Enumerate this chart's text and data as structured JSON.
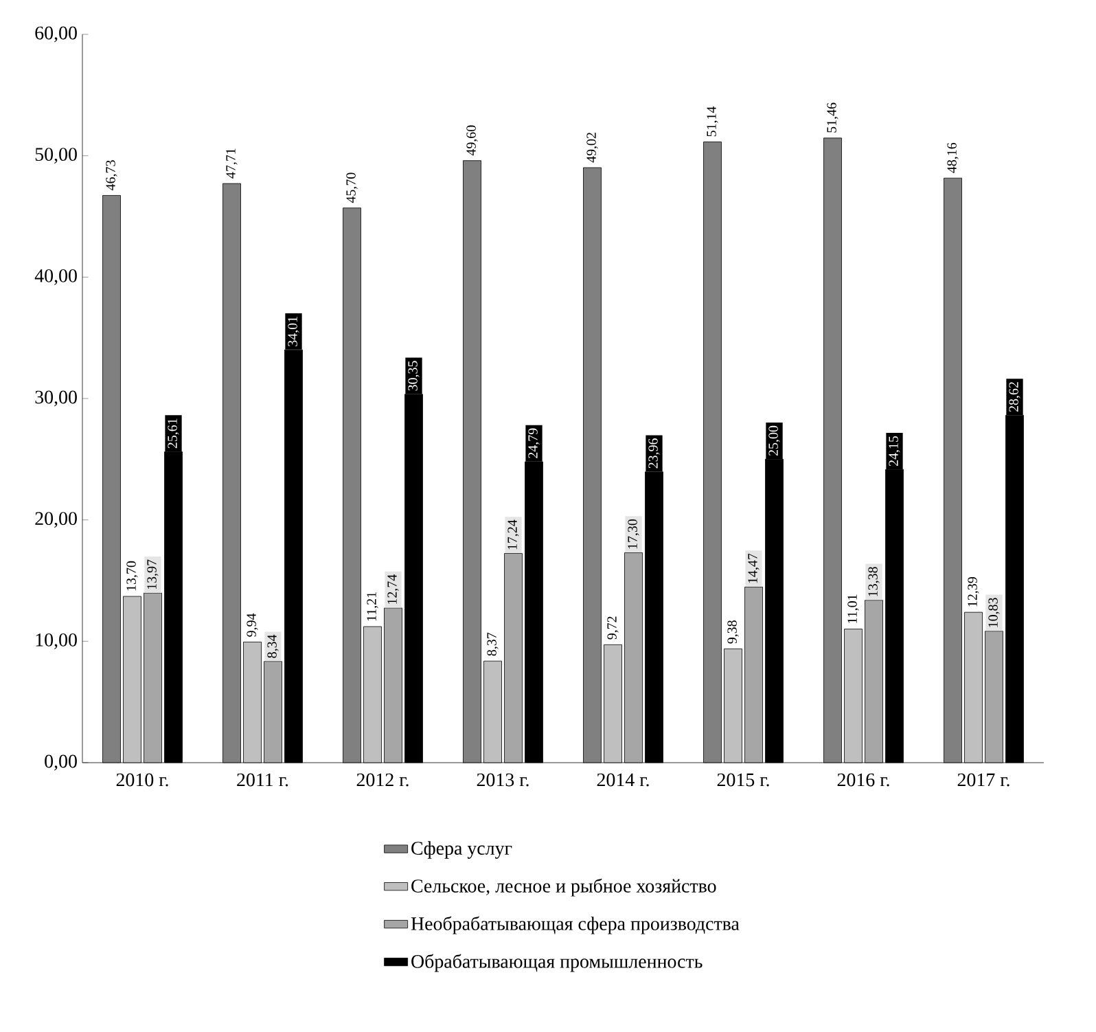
{
  "chart_data": {
    "type": "bar",
    "categories": [
      "2010 г.",
      "2011 г.",
      "2012 г.",
      "2013 г.",
      "2014 г.",
      "2015 г.",
      "2016 г.",
      "2017 г."
    ],
    "ylim": [
      0,
      60
    ],
    "yticks": [
      {
        "value": 0,
        "label": "0,00"
      },
      {
        "value": 10,
        "label": "10,00"
      },
      {
        "value": 20,
        "label": "20,00"
      },
      {
        "value": 30,
        "label": "30,00"
      },
      {
        "value": 40,
        "label": "40,00"
      },
      {
        "value": 50,
        "label": "50,00"
      },
      {
        "value": 60,
        "label": "60,00"
      }
    ],
    "legend": "bottom",
    "series": [
      {
        "name": "Сфера услуг",
        "color": "#808080",
        "values": [
          46.73,
          47.71,
          45.7,
          49.6,
          49.02,
          51.14,
          51.46,
          48.16
        ],
        "value_labels": [
          "46,73",
          "47,71",
          "45,70",
          "49,60",
          "49,02",
          "51,14",
          "51,46",
          "48,16"
        ]
      },
      {
        "name": "Сельское, лесное и рыбное хозяйство",
        "color": "#bfbfbf",
        "values": [
          13.7,
          9.94,
          11.21,
          8.37,
          9.72,
          9.38,
          11.01,
          12.39
        ],
        "value_labels": [
          "13,70",
          "9,94",
          "11,21",
          "8,37",
          "9,72",
          "9,38",
          "11,01",
          "12,39"
        ]
      },
      {
        "name": "Необрабатывающая сфера производства",
        "color": "#a6a6a6",
        "values": [
          13.97,
          8.34,
          12.74,
          17.24,
          17.3,
          14.47,
          13.38,
          10.83
        ],
        "value_labels": [
          "13,97",
          "8,34",
          "12,74",
          "17,24",
          "17,30",
          "14,47",
          "13,38",
          "10,83"
        ]
      },
      {
        "name": "Обрабатывающая промышленность",
        "color": "#000000",
        "values": [
          25.61,
          34.01,
          30.35,
          24.79,
          23.96,
          25.0,
          24.15,
          28.62
        ],
        "value_labels": [
          "25,61",
          "34,01",
          "30,35",
          "24,79",
          "23,96",
          "25,00",
          "24,15",
          "28,62"
        ]
      }
    ]
  }
}
